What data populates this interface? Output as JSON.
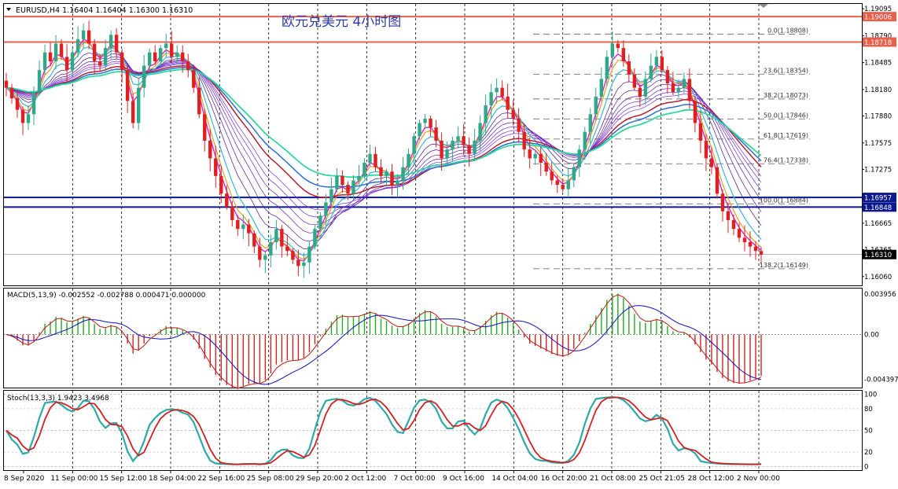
{
  "header": {
    "symbol_info": "EURUSD,H4  1.16404 1.16404 1.16300 1.16310",
    "title": "欧元兑美元  4小时图"
  },
  "colors": {
    "bull": "#2fa88a",
    "bear": "#e02020",
    "grid": "#000000",
    "red_level": "#e8604c",
    "blue_level": "#0a1a8c",
    "fib": "#777777",
    "macd_line": "#1010c0",
    "macd_signal": "#c01818",
    "macd_hist_pos": "#22aa22",
    "macd_hist_neg": "#d22222",
    "stoch_main": "#2fa8a8",
    "stoch_signal": "#d42020"
  },
  "chart_data": [
    {
      "type": "candlestick",
      "name_label": "EURUSD,H4",
      "ylim": [
        1.1596,
        1.1915
      ],
      "price_ticks": [
        "1.19095",
        "1.18790",
        "1.18485",
        "1.18180",
        "1.17880",
        "1.17575",
        "1.17275",
        "1.16970",
        "1.16665",
        "1.16365",
        "1.16060"
      ],
      "tick_values": [
        1.19095,
        1.1879,
        1.18485,
        1.1818,
        1.1788,
        1.17575,
        1.17275,
        1.1697,
        1.16665,
        1.16365,
        1.1606
      ],
      "x_labels": [
        "8 Sep 2020",
        "11 Sep 00:00",
        "15 Sep 12:00",
        "18 Sep 04:00",
        "22 Sep 16:00",
        "25 Sep 08:00",
        "29 Sep 20:00",
        "2 Oct 12:00",
        "7 Oct 00:00",
        "9 Oct 16:00",
        "14 Oct 04:00",
        "16 Oct 20:00",
        "21 Oct 08:00",
        "25 Oct 21:05",
        "28 Oct 12:00",
        "2 Nov 00:00"
      ],
      "horizontal_levels": [
        {
          "label": "1.19006",
          "value": 1.19006,
          "color": "red"
        },
        {
          "label": "1.18718",
          "value": 1.18718,
          "color": "red"
        },
        {
          "label": "1.16957",
          "value": 1.16957,
          "color": "blue"
        },
        {
          "label": "1.16848",
          "value": 1.16848,
          "color": "blue"
        },
        {
          "label": "1.16310",
          "value": 1.1631,
          "color": "current"
        }
      ],
      "fibonacci": [
        {
          "label": "0.0(1.18808)",
          "value": 1.18808
        },
        {
          "label": "23.6(1.18354)",
          "value": 1.18354
        },
        {
          "label": "38.2(1.18073)",
          "value": 1.18073
        },
        {
          "label": "50.0(1.17846)",
          "value": 1.17846
        },
        {
          "label": "61.8(1.17619)",
          "value": 1.17619
        },
        {
          "label": "76.4(1.17338)",
          "value": 1.17338
        },
        {
          "label": "100.0(1.16884)",
          "value": 1.16884
        },
        {
          "label": "138.2(1.16149)",
          "value": 1.16149
        }
      ],
      "close_series": [
        1.182,
        1.1808,
        1.1795,
        1.178,
        1.179,
        1.1815,
        1.184,
        1.186,
        1.185,
        1.187,
        1.1855,
        1.184,
        1.186,
        1.1875,
        1.1885,
        1.187,
        1.185,
        1.1845,
        1.1865,
        1.188,
        1.186,
        1.184,
        1.1805,
        1.178,
        1.182,
        1.1845,
        1.186,
        1.185,
        1.1865,
        1.187,
        1.1855,
        1.186,
        1.185,
        1.184,
        1.182,
        1.179,
        1.176,
        1.174,
        1.172,
        1.17,
        1.1685,
        1.167,
        1.166,
        1.1665,
        1.1655,
        1.164,
        1.1625,
        1.163,
        1.1645,
        1.166,
        1.164,
        1.1635,
        1.1625,
        1.1618,
        1.1622,
        1.164,
        1.166,
        1.1675,
        1.169,
        1.1705,
        1.172,
        1.171,
        1.17,
        1.1715,
        1.172,
        1.1735,
        1.1745,
        1.173,
        1.172,
        1.1725,
        1.171,
        1.1715,
        1.173,
        1.1745,
        1.1765,
        1.178,
        1.1785,
        1.1775,
        1.176,
        1.174,
        1.175,
        1.176,
        1.1765,
        1.1755,
        1.1745,
        1.176,
        1.178,
        1.18,
        1.1815,
        1.182,
        1.181,
        1.1795,
        1.1785,
        1.177,
        1.175,
        1.174,
        1.1745,
        1.1735,
        1.1725,
        1.1715,
        1.171,
        1.1705,
        1.1715,
        1.173,
        1.175,
        1.177,
        1.179,
        1.181,
        1.183,
        1.1855,
        1.187,
        1.1865,
        1.185,
        1.1835,
        1.182,
        1.181,
        1.183,
        1.1845,
        1.1855,
        1.184,
        1.1825,
        1.1815,
        1.182,
        1.183,
        1.1805,
        1.178,
        1.176,
        1.174,
        1.173,
        1.17,
        1.168,
        1.167,
        1.166,
        1.165,
        1.1645,
        1.164,
        1.1635,
        1.1631
      ]
    },
    {
      "type": "macd",
      "label": "MACD(5,13,9) -0.002552 -0.002788 0.000471 0.000000",
      "ticks": [
        "0.003956",
        "0.00",
        "-0.004397"
      ],
      "tick_values": [
        0.003956,
        0.0,
        -0.004397
      ],
      "ylim": [
        -0.0052,
        0.0045
      ]
    },
    {
      "type": "stochastic",
      "label": "Stoch(13,3,3) 1.9423 3.4968",
      "ticks": [
        "100",
        "80",
        "50",
        "20",
        "0"
      ],
      "tick_values": [
        100,
        80,
        50,
        20,
        0
      ],
      "ylim": [
        -5,
        105
      ]
    }
  ]
}
